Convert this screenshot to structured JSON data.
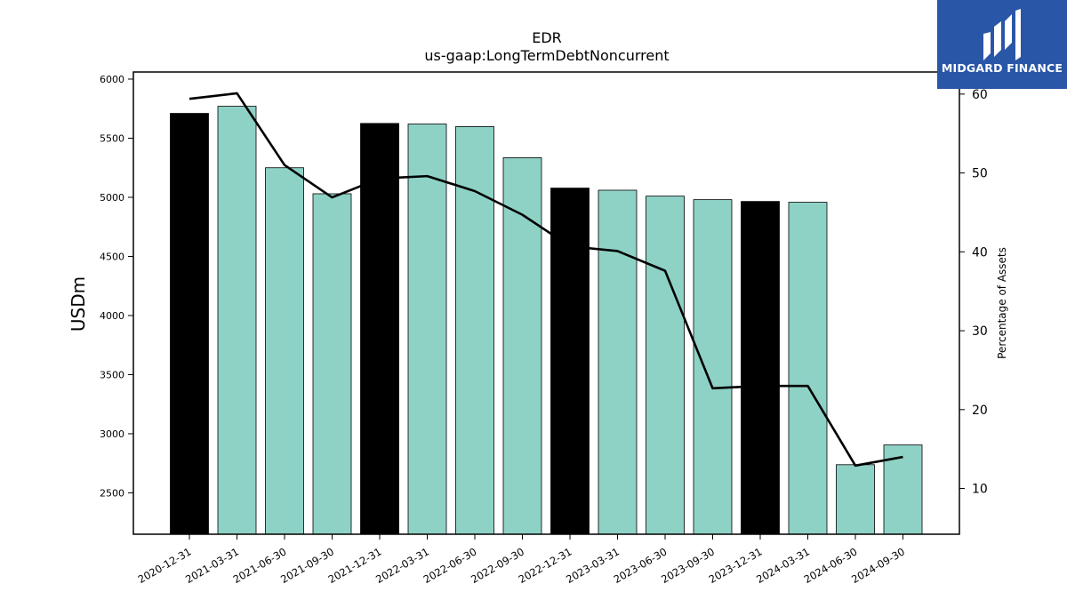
{
  "brand": {
    "name": "MIDGARD FINANCE"
  },
  "chart_data": {
    "type": "bar",
    "title": "EDR",
    "subtitle": "us-gaap:LongTermDebtNoncurrent",
    "ylabel": "USDm",
    "y2label": "Percentage of Assets",
    "ylim": [
      2150,
      6060
    ],
    "y2lim": [
      4.2,
      62.8
    ],
    "yticks": [
      2500,
      3000,
      3500,
      4000,
      4500,
      5000,
      5500,
      6000
    ],
    "y2ticks": [
      10,
      20,
      30,
      40,
      50,
      60
    ],
    "categories": [
      "2020-12-31",
      "2021-03-31",
      "2021-06-30",
      "2021-09-30",
      "2021-12-31",
      "2022-03-31",
      "2022-06-30",
      "2022-09-30",
      "2022-12-31",
      "2023-03-31",
      "2023-06-30",
      "2023-09-30",
      "2023-12-31",
      "2024-03-31",
      "2024-06-30",
      "2024-09-30"
    ],
    "series": [
      {
        "type": "bar",
        "values": [
          5710,
          5770,
          5250,
          5030,
          5625,
          5620,
          5598,
          5335,
          5078,
          5060,
          5010,
          4980,
          4965,
          4958,
          2738,
          2905
        ]
      },
      {
        "type": "line",
        "axis": "right",
        "values": [
          59.4,
          60.1,
          51.0,
          46.9,
          49.3,
          49.6,
          47.7,
          44.7,
          40.7,
          40.1,
          37.6,
          22.7,
          23.0,
          23.0,
          12.9,
          14.0
        ]
      }
    ],
    "bar_colors": [
      "#000000",
      "#8ed2c6",
      "#8ed2c6",
      "#8ed2c6",
      "#000000",
      "#8ed2c6",
      "#8ed2c6",
      "#8ed2c6",
      "#000000",
      "#8ed2c6",
      "#8ed2c6",
      "#8ed2c6",
      "#000000",
      "#8ed2c6",
      "#8ed2c6",
      "#8ed2c6"
    ],
    "line_color": "#000000",
    "grid": false,
    "legend": "none"
  }
}
